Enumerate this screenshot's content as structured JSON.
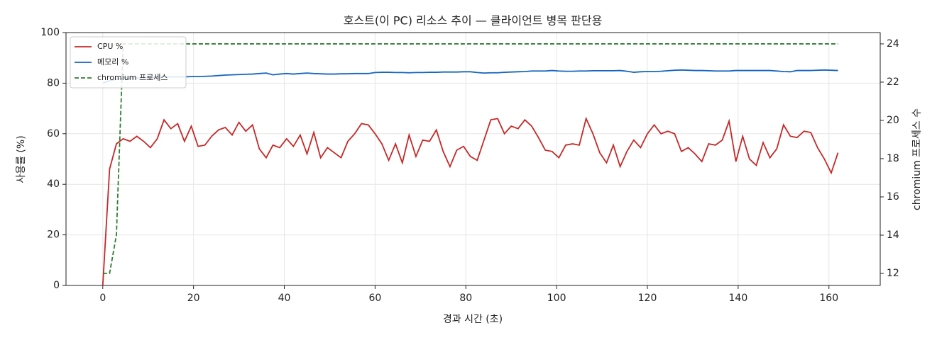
{
  "chart_data": {
    "type": "line",
    "title": "호스트(이 PC) 리소스 추이 — 클라이언트 병목 판단용",
    "x_label": "경과 시간 (초)",
    "y_label": "사용률 (%)",
    "y2_label": "chromium 프로세스 수",
    "x": [
      0,
      1.5,
      3,
      4.5,
      6,
      7.5,
      9,
      10.5,
      12,
      13.5,
      15,
      16.5,
      18,
      19.5,
      21,
      22.5,
      24,
      25.5,
      27,
      28.5,
      30,
      31.5,
      33,
      34.5,
      36,
      37.5,
      39,
      40.5,
      42,
      43.5,
      45,
      46.5,
      48,
      49.5,
      51,
      52.5,
      54,
      55.5,
      57,
      58.5,
      60,
      61.5,
      63,
      64.5,
      66,
      67.5,
      69,
      70.5,
      72,
      73.5,
      75,
      76.5,
      78,
      79.5,
      81,
      82.5,
      84,
      85.5,
      87,
      88.5,
      90,
      91.5,
      93,
      94.5,
      96,
      97.5,
      99,
      100.5,
      102,
      103.5,
      105,
      106.5,
      108,
      109.5,
      111,
      112.5,
      114,
      115.5,
      117,
      118.5,
      120,
      121.5,
      123,
      124.5,
      126,
      127.5,
      129,
      130.5,
      132,
      133.5,
      135,
      136.5,
      138,
      139.5,
      141,
      142.5,
      144,
      145.5,
      147,
      148.5,
      150,
      151.5,
      153,
      154.5,
      156,
      157.5,
      159,
      160.5,
      162
    ],
    "series": [
      {
        "name": "CPU %",
        "color": "#c62828",
        "linestyle": "solid",
        "values": [
          0,
          46,
          56,
          58,
          57,
          59,
          57,
          54.5,
          58,
          65.5,
          62,
          64,
          57,
          63,
          55,
          55.5,
          59,
          61.5,
          62.5,
          59.5,
          64.5,
          61,
          63.5,
          54,
          50.5,
          55.5,
          54.5,
          58,
          55,
          59.5,
          52,
          60.5,
          50.5,
          54.5,
          52.5,
          50.5,
          57,
          60,
          64,
          63.5,
          60,
          56,
          49.5,
          56,
          48.5,
          59.5,
          51,
          57.5,
          57,
          61.5,
          53,
          47,
          53.5,
          55,
          51,
          49.5,
          57.5,
          65.5,
          66,
          60,
          63,
          62,
          65.5,
          63,
          58.5,
          53.5,
          53,
          50.5,
          55.5,
          56,
          55.5,
          66,
          60,
          52.5,
          48.5,
          55.5,
          47,
          53,
          57.5,
          54.5,
          60,
          63.5,
          60,
          61,
          60,
          53,
          54.5,
          52,
          49,
          56,
          55.5,
          57.5,
          65,
          49,
          59,
          50,
          47.5,
          56.5,
          50.5,
          54,
          63.5,
          59,
          58.5,
          61,
          60.5,
          54.5,
          50,
          44.5,
          52.5
        ]
      },
      {
        "name": "메모리 %",
        "color": "#1565c0",
        "linestyle": "solid",
        "values": [
          80,
          81,
          81.5,
          82,
          82,
          82,
          82.2,
          82.3,
          82.4,
          82.5,
          82.5,
          82.5,
          82.5,
          82.6,
          82.6,
          82.7,
          82.8,
          83,
          83.2,
          83.3,
          83.4,
          83.5,
          83.6,
          83.8,
          84,
          83.3,
          83.6,
          83.8,
          83.6,
          83.8,
          84,
          83.8,
          83.7,
          83.6,
          83.6,
          83.7,
          83.7,
          83.8,
          83.8,
          83.8,
          84.2,
          84.3,
          84.3,
          84.2,
          84.2,
          84.1,
          84.2,
          84.2,
          84.3,
          84.3,
          84.4,
          84.4,
          84.4,
          84.5,
          84.5,
          84.2,
          84,
          84.1,
          84.1,
          84.3,
          84.4,
          84.5,
          84.6,
          84.8,
          84.8,
          84.8,
          85,
          84.8,
          84.7,
          84.7,
          84.8,
          84.8,
          84.9,
          84.9,
          84.9,
          84.9,
          85,
          84.7,
          84.3,
          84.5,
          84.6,
          84.6,
          84.7,
          84.9,
          85.1,
          85.2,
          85.1,
          85,
          85,
          84.9,
          84.8,
          84.8,
          84.8,
          85,
          85,
          85,
          85,
          85,
          85,
          84.8,
          84.6,
          84.5,
          85,
          85,
          85,
          85.1,
          85.2,
          85.1,
          85
        ]
      },
      {
        "name": "chromium 프로세스",
        "color": "#2e7d32",
        "linestyle": "dashed",
        "axis": "y2",
        "values": [
          12,
          12,
          14,
          24,
          24,
          24,
          24,
          24,
          24,
          24,
          24,
          24,
          24,
          24,
          24,
          24,
          24,
          24,
          24,
          24,
          24,
          24,
          24,
          24,
          24,
          24,
          24,
          24,
          24,
          24,
          24,
          24,
          24,
          24,
          24,
          24,
          24,
          24,
          24,
          24,
          24,
          24,
          24,
          24,
          24,
          24,
          24,
          24,
          24,
          24,
          24,
          24,
          24,
          24,
          24,
          24,
          24,
          24,
          24,
          24,
          24,
          24,
          24,
          24,
          24,
          24,
          24,
          24,
          24,
          24,
          24,
          24,
          24,
          24,
          24,
          24,
          24,
          24,
          24,
          24,
          24,
          24,
          24,
          24,
          24,
          24,
          24,
          24,
          24,
          24,
          24,
          24,
          24,
          24,
          24,
          24,
          24,
          24,
          24,
          24,
          24,
          24,
          24,
          24,
          24,
          24,
          24,
          24,
          24
        ]
      }
    ],
    "xlim": [
      -8.1,
      171.3
    ],
    "xticks": [
      0,
      20,
      40,
      60,
      80,
      100,
      120,
      140,
      160
    ],
    "ylim": [
      0,
      100
    ],
    "yticks": [
      0,
      20,
      40,
      60,
      80,
      100
    ],
    "y2lim": [
      11.37,
      24.59
    ],
    "y2ticks": [
      12,
      14,
      16,
      18,
      20,
      22,
      24
    ],
    "grid": true,
    "legend": "upper-left"
  }
}
